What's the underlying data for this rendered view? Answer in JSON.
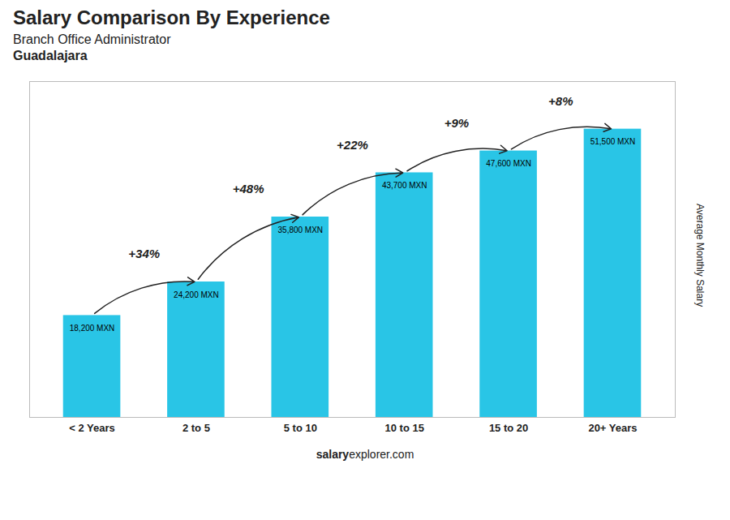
{
  "chart_data": {
    "type": "bar",
    "title": "Salary Comparison By Experience",
    "subtitle": [
      "Branch Office Administrator",
      "Guadalajara"
    ],
    "ylabel": "Average Monthly Salary",
    "categories": [
      "< 2 Years",
      "2 to 5",
      "5 to 10",
      "10 to 15",
      "15 to 20",
      "20+ Years"
    ],
    "values": [
      18200,
      24200,
      35800,
      43700,
      47600,
      51500
    ],
    "value_labels": [
      "18,200 MXN",
      "24,200 MXN",
      "35,800 MXN",
      "43,700 MXN",
      "47,600 MXN",
      "51,500 MXN"
    ],
    "data_labels": true,
    "annotations": [
      "+34%",
      "+48%",
      "+22%",
      "+9%",
      "+8%"
    ],
    "caption": [
      "salary",
      "explorer.com"
    ],
    "color": "#29c5e6",
    "ylim": [
      0,
      60000
    ],
    "tick_labels": "x",
    "grid": false
  }
}
